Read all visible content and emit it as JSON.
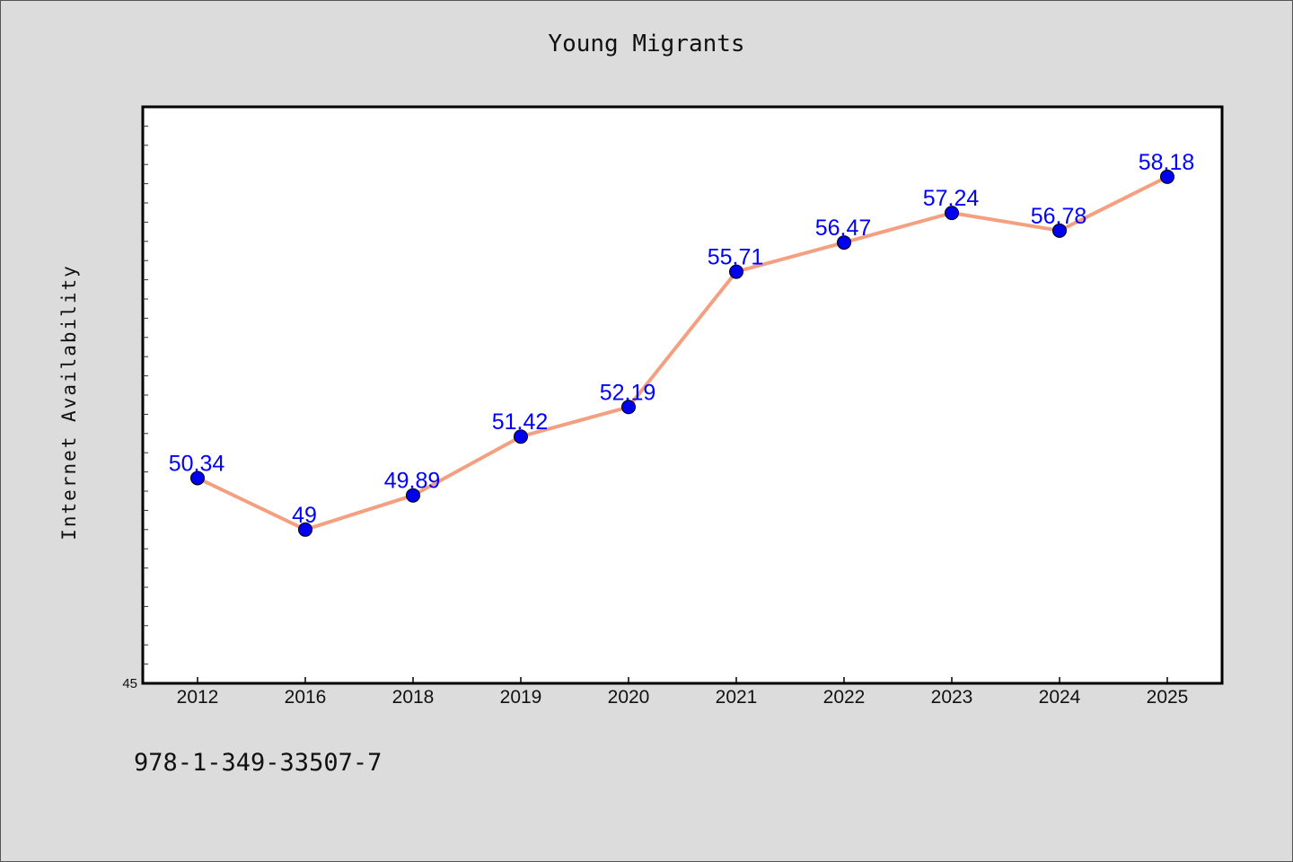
{
  "colors": {
    "background": "#dcdcdc",
    "plot_background": "#ffffff",
    "line": "#f4a080",
    "marker": "#0000ee",
    "data_label": "#0000ff"
  },
  "footer_text": "978-1-349-33507-7",
  "chart_data": {
    "type": "line",
    "title": "Young Migrants",
    "xlabel": "",
    "ylabel": "Internet Availability",
    "categories": [
      "2012",
      "2016",
      "2018",
      "2019",
      "2020",
      "2021",
      "2022",
      "2023",
      "2024",
      "2025"
    ],
    "series": [
      {
        "values": [
          50.34,
          49,
          49.89,
          51.42,
          52.19,
          55.71,
          56.47,
          57.24,
          56.78,
          58.18
        ]
      }
    ],
    "data_labels": [
      "50.34",
      "49",
      "49.89",
      "51.42",
      "52.19",
      "55.71",
      "56.47",
      "57.24",
      "56.78",
      "58.18"
    ],
    "y_tick_labels": [
      "45"
    ],
    "ylim": [
      45,
      60
    ],
    "grid": false,
    "legend": "none"
  }
}
